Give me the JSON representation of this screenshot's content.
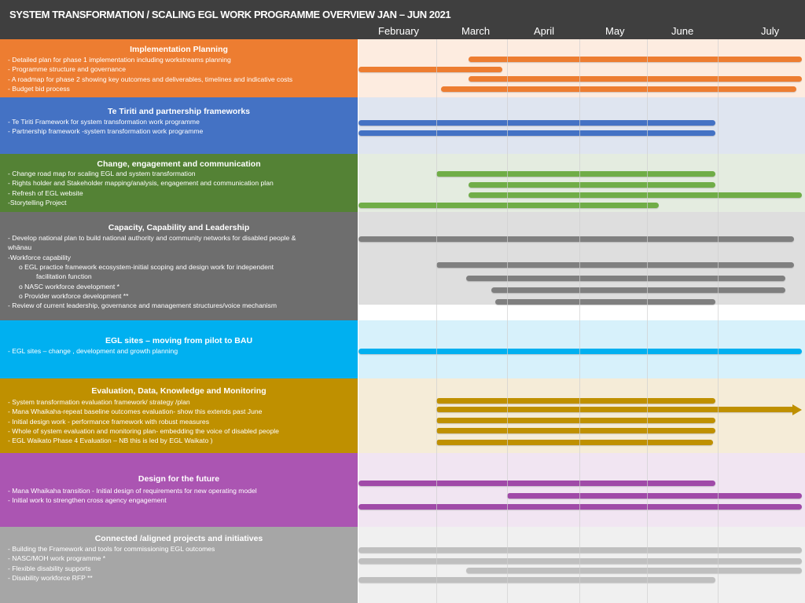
{
  "header": {
    "title": "SYSTEM TRANSFORMATION / SCALING EGL WORK PROGRAMME OVERVIEW JAN – JUN 2021",
    "months": [
      "February",
      "March",
      "April",
      "May",
      "June",
      "July"
    ]
  },
  "sections": [
    {
      "id": "implementation-planning",
      "title": "Implementation Planning",
      "color": "#ed7d31",
      "tint": "#fdece0",
      "bar_color": "#ed7d31",
      "lines": [
        {
          "text": "- Detailed plan for phase 1 implementation including workstreams planning",
          "indent": 0
        },
        {
          "text": "- Programme structure and governance",
          "indent": 0
        },
        {
          "text": "- A roadmap for phase 2 showing key outcomes and deliverables, timelines and indicative costs",
          "indent": 0
        },
        {
          "text": "- Budget bid process",
          "indent": 0
        }
      ],
      "bars": [
        {
          "start": "2021-03-15",
          "end": "2021-07-31"
        },
        {
          "start": "2021-02-01",
          "end": "2021-03-30"
        },
        {
          "start": "2021-03-15",
          "end": "2021-07-31"
        },
        {
          "start": "2021-03-03",
          "end": "2021-07-29"
        }
      ]
    },
    {
      "id": "te-tiriti-partnership",
      "title": "Te Tiriti and partnership frameworks",
      "color": "#4472c4",
      "tint": "#dfe5f0",
      "bar_color": "#4472c4",
      "lines": [
        {
          "text": "- Te Tiriti Framework for system transformation work programme",
          "indent": 0
        },
        {
          "text": "- Partnership framework -system transformation work programme",
          "indent": 0
        }
      ],
      "bars": [
        {
          "start": "2021-02-01",
          "end": "2021-06-30"
        },
        {
          "start": "2021-02-01",
          "end": "2021-06-30"
        }
      ]
    },
    {
      "id": "change-engagement-communication",
      "title": "Change, engagement and communication",
      "color": "#548235",
      "tint": "#e4ece0",
      "bar_color": "#70ad47",
      "lines": [
        {
          "text": "- Change road map for  scaling EGL and system transformation",
          "indent": 0
        },
        {
          "text": "- Rights holder and Stakeholder mapping/analysis, engagement and  communication plan",
          "indent": 0
        },
        {
          "text": "- Refresh of EGL website",
          "indent": 0
        },
        {
          "text": " -Storytelling Project",
          "indent": 0
        }
      ],
      "bars": [
        {
          "start": "2021-03-01",
          "end": "2021-06-30"
        },
        {
          "start": "2021-03-15",
          "end": "2021-06-30"
        },
        {
          "start": "2021-03-15",
          "end": "2021-07-31"
        },
        {
          "start": "2021-02-01",
          "end": "2021-06-06"
        }
      ]
    },
    {
      "id": "capacity-capability-leadership",
      "title": "Capacity, Capability and Leadership",
      "color": "#6e6e6e",
      "tint": "#dedede",
      "bar_color": "#7f7f7f",
      "lines": [
        {
          "text": "- Develop national plan to build national authority and community networks for disabled people &",
          "indent": 0
        },
        {
          "text": "whānau",
          "indent": 0
        },
        {
          "text": "-Workforce capability",
          "indent": 0
        },
        {
          "text": "o    EGL practice framework ecosystem-initial scoping and design work for independent",
          "indent": 2
        },
        {
          "text": "facilitation function",
          "indent": 3
        },
        {
          "text": "o    NASC workforce development     *",
          "indent": 2
        },
        {
          "text": "o    Provider workforce development      **",
          "indent": 2
        },
        {
          "text": "- Review of current leadership, governance and management structures/voice mechanism",
          "indent": 0
        }
      ],
      "bars": [
        {
          "start": "2021-02-01",
          "end": "2021-07-28"
        },
        {
          "start": "2021-03-01",
          "end": "2021-07-28"
        },
        {
          "start": "2021-03-14",
          "end": "2021-07-25"
        },
        {
          "start": "2021-03-25",
          "end": "2021-07-25"
        },
        {
          "start": "2021-03-27",
          "end": "2021-06-30"
        }
      ]
    },
    {
      "id": "egl-sites",
      "title": "EGL sites – moving from pilot to BAU",
      "color": "#00b0f0",
      "tint": "#d7f1fb",
      "bar_color": "#00b0f0",
      "lines": [
        {
          "text": "   - EGL sites – change , development and growth planning",
          "indent": 0
        }
      ],
      "bars": [
        {
          "start": "2021-02-01",
          "end": "2021-07-31"
        }
      ]
    },
    {
      "id": "evaluation-data-knowledge-monitoring",
      "title": "Evaluation, Data, Knowledge and Monitoring",
      "color": "#bf9000",
      "tint": "#f5ecd8",
      "bar_color": "#bf9000",
      "lines": [
        {
          "text": "- System transformation evaluation framework/ strategy /plan",
          "indent": 0
        },
        {
          "text": "- Mana Whaikaha-repeat baseline outcomes  evaluation- show this extends past June",
          "indent": 0
        },
        {
          "text": "-    Initial design work - performance framework with robust measures",
          "indent": 0
        },
        {
          "text": "-    Whole of system evaluation and monitoring plan- embedding the voice of disabled people",
          "indent": 0
        },
        {
          "text": "-    EGL Waikato Phase 4 Evaluation – NB this is led by EGL Waikato )",
          "indent": 0
        }
      ],
      "bars": [
        {
          "start": "2021-03-01",
          "end": "2021-06-30",
          "arrow": false
        },
        {
          "start": "2021-03-01",
          "end": "2021-07-31",
          "arrow": true
        },
        {
          "start": "2021-03-01",
          "end": "2021-06-30",
          "arrow": false
        },
        {
          "start": "2021-03-01",
          "end": "2021-06-30",
          "arrow": false
        },
        {
          "start": "2021-03-01",
          "end": "2021-06-29",
          "arrow": false
        }
      ]
    },
    {
      "id": "design-for-the-future",
      "title": "Design for the future",
      "color": "#ab55b2",
      "tint": "#f1e5f2",
      "bar_color": "#a04aa8",
      "lines": [
        {
          "text": "- Mana Whaikaha transition - Initial design of requirements for new operating model",
          "indent": 0
        },
        {
          "text": "- Initial work to strengthen cross agency engagement",
          "indent": 0
        }
      ],
      "bars": [
        {
          "start": "2021-02-01",
          "end": "2021-06-30"
        },
        {
          "start": "2021-04-01",
          "end": "2021-07-31"
        },
        {
          "start": "2021-02-01",
          "end": "2021-07-31"
        }
      ]
    },
    {
      "id": "connected-aligned-projects",
      "title": "Connected /aligned projects and initiatives",
      "color": "#a6a6a6",
      "tint": "#f0f0f0",
      "bar_color": "#bfbfbf",
      "lines": [
        {
          "text": "- Building the Framework and tools for commissioning  EGL outcomes",
          "indent": 0
        },
        {
          "text": "-  NASC/MOH  work programme *",
          "indent": 0
        },
        {
          "text": "- Flexible disability supports",
          "indent": 0
        },
        {
          "text": "- Disability  workforce RFP **",
          "indent": 0
        }
      ],
      "bars": [
        {
          "start": "2021-02-01",
          "end": "2021-07-31"
        },
        {
          "start": "2021-02-01",
          "end": "2021-07-31"
        },
        {
          "start": "2021-03-14",
          "end": "2021-07-31"
        },
        {
          "start": "2021-02-01",
          "end": "2021-06-30"
        }
      ]
    }
  ]
}
